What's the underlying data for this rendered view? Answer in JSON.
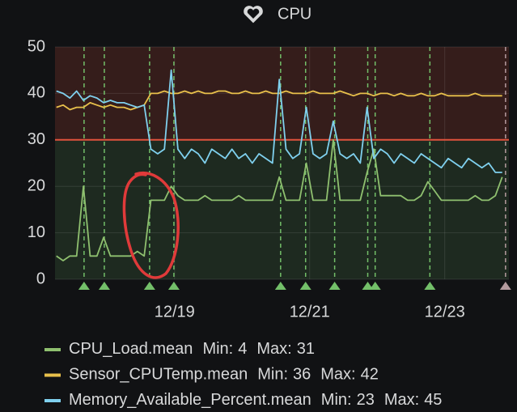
{
  "chart_data": {
    "type": "line",
    "title": "CPU",
    "x": [
      17.25,
      17.35,
      17.45,
      17.55,
      17.65,
      17.75,
      17.85,
      17.95,
      18.05,
      18.15,
      18.25,
      18.35,
      18.45,
      18.55,
      18.65,
      18.75,
      18.85,
      18.95,
      19.05,
      19.15,
      19.25,
      19.35,
      19.45,
      19.55,
      19.65,
      19.75,
      19.85,
      19.95,
      20.05,
      20.15,
      20.25,
      20.35,
      20.45,
      20.55,
      20.65,
      20.75,
      20.85,
      20.95,
      21.05,
      21.15,
      21.25,
      21.35,
      21.45,
      21.55,
      21.65,
      21.75,
      21.85,
      21.95,
      22.05,
      22.15,
      22.25,
      22.35,
      22.45,
      22.55,
      22.65,
      22.75,
      22.85,
      22.95,
      23.05,
      23.15,
      23.25,
      23.35,
      23.45,
      23.55,
      23.65,
      23.75,
      23.85
    ],
    "series": [
      {
        "name": "CPU_Load.mean",
        "color": "#8fc06f",
        "min": 4,
        "max": 31,
        "values": [
          5,
          4,
          5,
          5,
          20,
          5,
          5,
          9,
          5,
          5,
          5,
          5,
          6,
          5,
          17,
          17,
          17,
          20,
          18,
          17,
          17,
          17,
          18,
          17,
          17,
          17,
          17,
          18,
          17,
          17,
          17,
          17,
          17,
          22,
          17,
          17,
          17,
          25,
          17,
          17,
          17,
          30,
          17,
          17,
          17,
          17,
          23,
          28,
          18,
          18,
          18,
          18,
          17,
          17,
          18,
          21,
          19,
          17,
          17,
          17,
          17,
          17,
          18,
          17,
          17,
          18,
          22
        ]
      },
      {
        "name": "Sensor_CPUTemp.mean",
        "color": "#e8c04b",
        "min": 36,
        "max": 42,
        "values": [
          37,
          37.5,
          36.5,
          37,
          37,
          38,
          37.5,
          37,
          37.5,
          37,
          37,
          36.5,
          37,
          37.5,
          40,
          40,
          40.5,
          40,
          40,
          40.5,
          40,
          40.5,
          40,
          40,
          40.5,
          40.5,
          40,
          40,
          40.5,
          40,
          40,
          40.5,
          40,
          40,
          40.5,
          40,
          40,
          40,
          40.5,
          40,
          40,
          40,
          40.5,
          40,
          39.5,
          40,
          40,
          39.5,
          40,
          40,
          39.5,
          40,
          39.5,
          39.5,
          40,
          39.5,
          39.5,
          40,
          39.5,
          39.5,
          39.5,
          39.5,
          40,
          39.5,
          39.5,
          39.5,
          39.5
        ]
      },
      {
        "name": "Memory_Available_Percent.mean",
        "color": "#7fd0ee",
        "min": 23,
        "max": 45,
        "values": [
          40.5,
          40,
          39,
          40.5,
          38.5,
          39.5,
          39,
          38,
          38.5,
          38,
          38,
          37.5,
          37,
          37.5,
          28,
          27,
          28,
          45,
          28,
          26,
          28,
          27,
          25,
          28,
          27,
          26,
          28,
          26,
          27,
          25,
          27,
          26,
          25,
          43,
          28,
          26,
          27,
          37,
          27,
          26,
          27,
          34,
          27,
          26,
          27,
          25,
          37,
          26,
          28,
          27,
          25,
          27,
          26,
          25,
          27,
          26,
          25,
          24,
          26,
          25,
          24,
          26,
          25,
          24,
          25,
          23,
          23
        ]
      }
    ],
    "xlim": [
      17.23,
      23.95
    ],
    "xticks": [
      {
        "value": 19,
        "label": "12/19"
      },
      {
        "value": 21,
        "label": "12/21"
      },
      {
        "value": 23,
        "label": "12/23"
      }
    ],
    "ylim": [
      0,
      50
    ],
    "yticks": [
      0,
      10,
      20,
      30,
      40,
      50
    ],
    "grid": true,
    "thresholds": [
      {
        "value": 30,
        "color": "#e0533d"
      }
    ],
    "annotations": [
      {
        "x": 17.66,
        "color": "#73bf69"
      },
      {
        "x": 17.96,
        "color": "#73bf69"
      },
      {
        "x": 18.63,
        "color": "#73bf69"
      },
      {
        "x": 18.99,
        "color": "#73bf69"
      },
      {
        "x": 20.57,
        "color": "#73bf69"
      },
      {
        "x": 20.94,
        "color": "#73bf69"
      },
      {
        "x": 21.37,
        "color": "#73bf69"
      },
      {
        "x": 21.86,
        "color": "#73bf69"
      },
      {
        "x": 21.97,
        "color": "#73bf69"
      },
      {
        "x": 22.78,
        "color": "#73bf69"
      },
      {
        "x": 23.9,
        "color": "#b39a9e"
      }
    ],
    "legend_labels": {
      "min": "Min:",
      "max": "Max:"
    }
  }
}
